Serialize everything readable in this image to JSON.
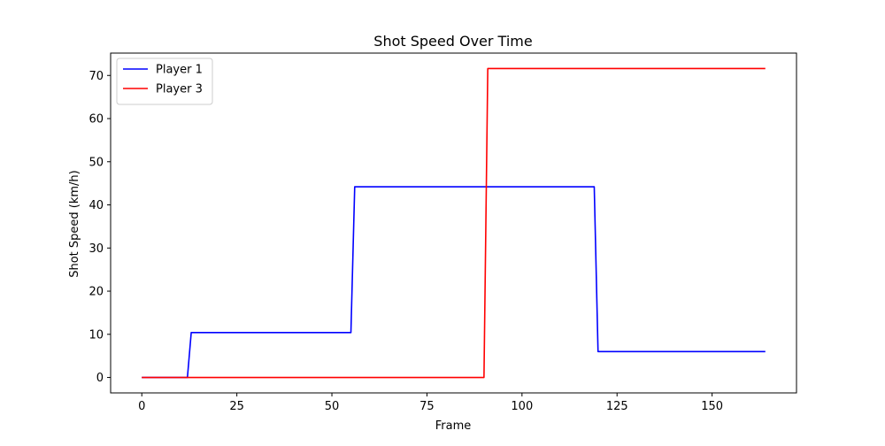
{
  "chart_data": {
    "type": "line",
    "title": "Shot Speed Over Time",
    "xlabel": "Frame",
    "ylabel": "Shot Speed (km/h)",
    "xlim": [
      -8.2,
      172.2
    ],
    "ylim": [
      -3.58,
      75.18
    ],
    "xticks": [
      0,
      25,
      50,
      75,
      100,
      125,
      150
    ],
    "yticks": [
      0,
      10,
      20,
      30,
      40,
      50,
      60,
      70
    ],
    "grid": false,
    "legend_position": "top-left",
    "series": [
      {
        "name": "Player 1",
        "color": "#0000ff",
        "points": [
          [
            0,
            0
          ],
          [
            12,
            0
          ],
          [
            13,
            10.4
          ],
          [
            55,
            10.4
          ],
          [
            56,
            44.2
          ],
          [
            119,
            44.2
          ],
          [
            120,
            6.0
          ],
          [
            164,
            6.0
          ]
        ]
      },
      {
        "name": "Player 3",
        "color": "#ff0000",
        "points": [
          [
            0,
            0
          ],
          [
            90,
            0
          ],
          [
            91,
            71.6
          ],
          [
            164,
            71.6
          ]
        ]
      }
    ]
  }
}
